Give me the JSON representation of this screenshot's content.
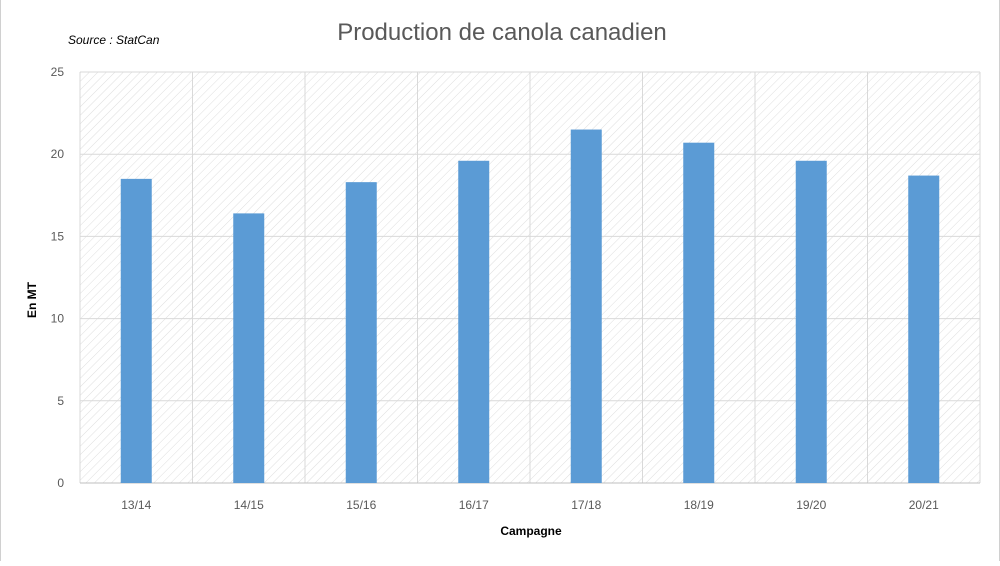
{
  "chart_data": {
    "type": "bar",
    "title": "Production de canola canadien",
    "source_note": "Source : StatCan",
    "xlabel": "Campagne",
    "ylabel": "En MT",
    "categories": [
      "13/14",
      "14/15",
      "15/16",
      "16/17",
      "17/18",
      "18/19",
      "19/20",
      "20/21"
    ],
    "series": [
      {
        "values": [
          18.5,
          16.4,
          18.3,
          19.6,
          21.5,
          20.7,
          19.6,
          18.7
        ]
      }
    ],
    "ylim": [
      0,
      25
    ],
    "yticks": [
      0,
      5,
      10,
      15,
      20,
      25
    ],
    "grid": true,
    "legend": "none",
    "colors": {
      "bar": "#5b9bd5",
      "grid": "#d9d9d9",
      "hatch": "#dcdcdc",
      "text": "#595959"
    }
  }
}
